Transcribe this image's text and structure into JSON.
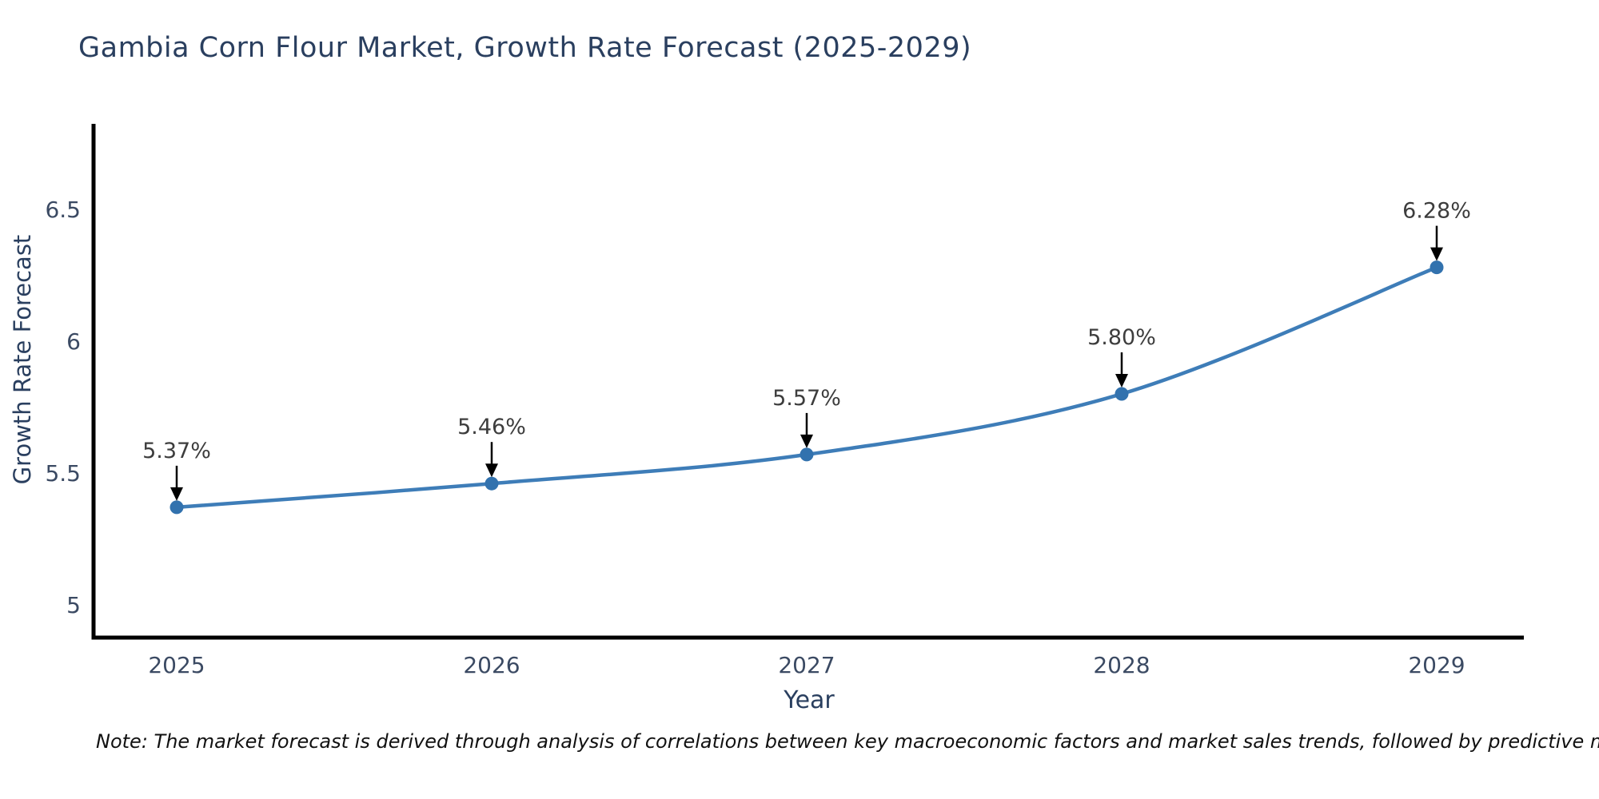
{
  "title": "Gambia Corn Flour Market, Growth Rate Forecast (2025-2029)",
  "note": {
    "text": "Note: The market forecast is derived through analysis of correlations between key macroeconomic factors and market sales trends, followed by predictive modeling to project future sales"
  },
  "chart_data": {
    "type": "line",
    "title": "Gambia Corn Flour Market, Growth Rate Forecast (2025-2029)",
    "xlabel": "Year",
    "ylabel": "Growth Rate Forecast",
    "x": [
      2025,
      2026,
      2027,
      2028,
      2029
    ],
    "series": [
      {
        "name": "Growth Rate Forecast",
        "values": [
          5.37,
          5.46,
          5.57,
          5.8,
          6.28
        ]
      }
    ],
    "point_labels": [
      "5.37%",
      "5.46%",
      "5.57%",
      "5.80%",
      "6.28%"
    ],
    "yticks": [
      5,
      5.5,
      6,
      6.5
    ],
    "ytick_labels": [
      "5",
      "5.5",
      "6",
      "6.5"
    ],
    "ylim": [
      4.88,
      6.82
    ],
    "grid": false,
    "legend_position": "none",
    "line_smoothing": true,
    "colors": {
      "line": "#3e7db8",
      "marker": "#3272ae",
      "annotation_text": "#3d3d3d",
      "arrow": "#000000",
      "axis_spine": "#000000",
      "tick_label": "#3b4a63",
      "axis_label": "#2a3f5f",
      "title": "#2a3f5f"
    }
  }
}
